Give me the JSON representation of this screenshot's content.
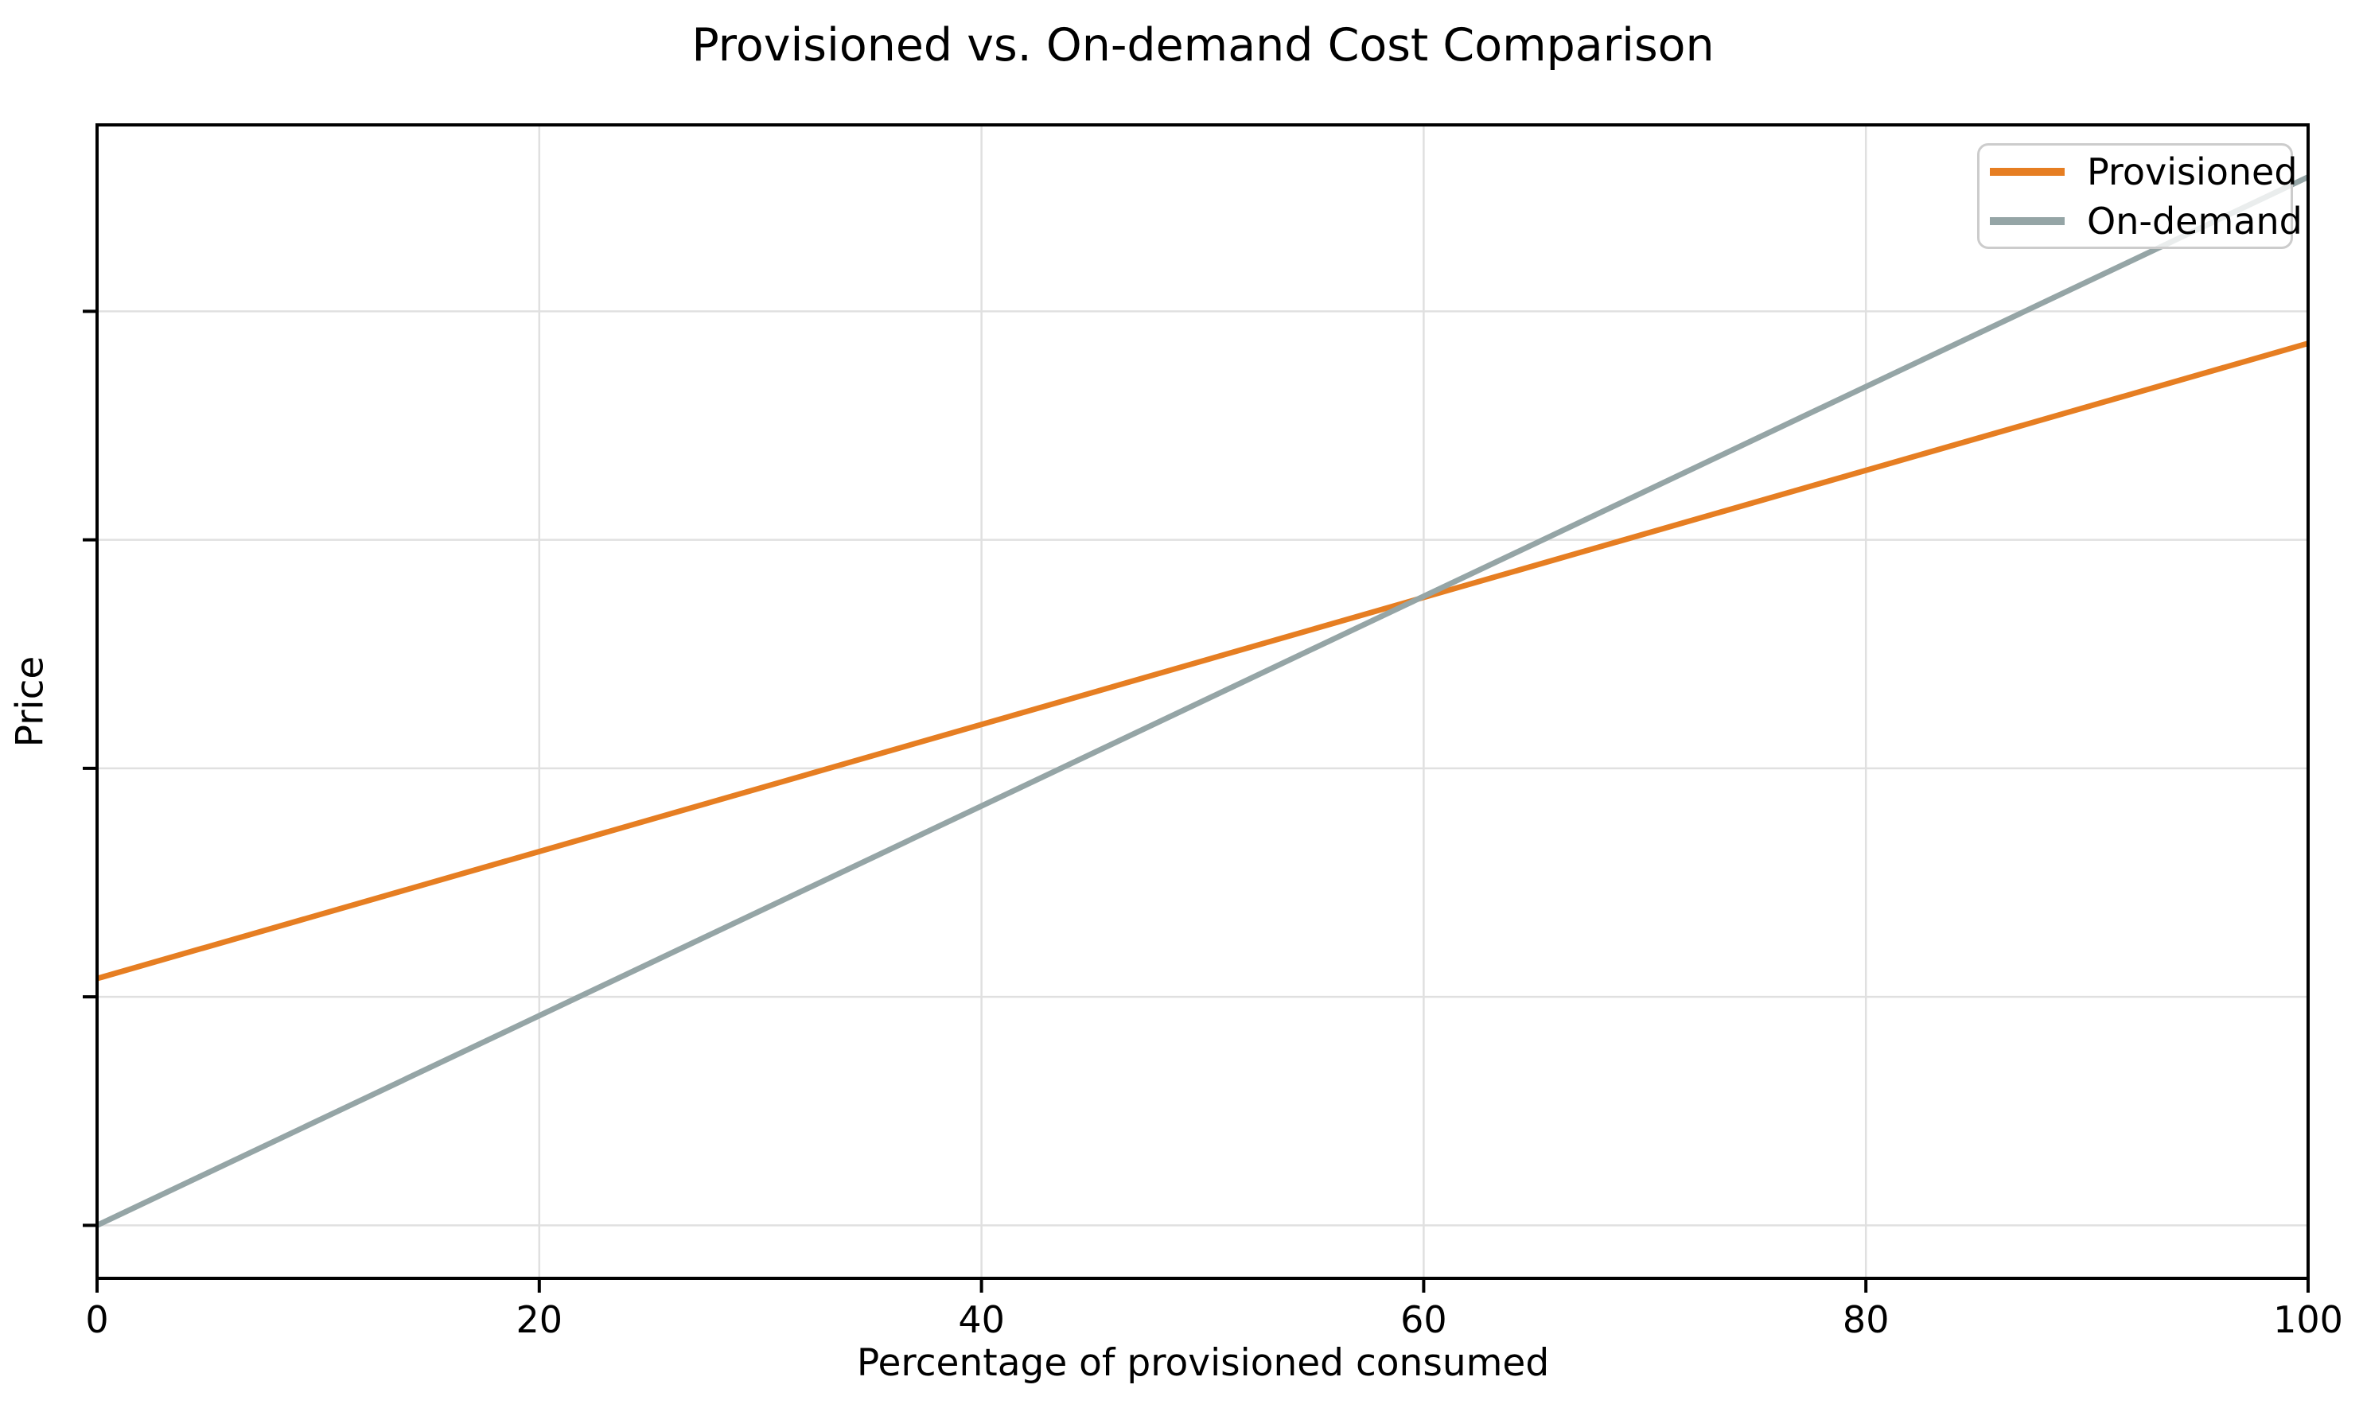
{
  "chart_data": {
    "type": "line",
    "title": "Provisioned vs. On-demand Cost Comparison",
    "xlabel": "Percentage of provisioned consumed",
    "ylabel": "Price",
    "xlim": [
      0,
      100
    ],
    "ylim": [
      -5.8,
      120.4
    ],
    "xticks": [
      0,
      20,
      40,
      60,
      80,
      100
    ],
    "xtick_labels": [
      "0",
      "20",
      "40",
      "60",
      "80",
      "100"
    ],
    "yticks": [
      0,
      25,
      50,
      75,
      100
    ],
    "ytick_labels": [
      "",
      "",
      "",
      "",
      ""
    ],
    "grid": true,
    "legend_position": "upper right",
    "series": [
      {
        "name": "Provisioned",
        "color": "#e67e22",
        "x": [
          0,
          100
        ],
        "y": [
          27,
          96.5
        ]
      },
      {
        "name": "On-demand",
        "color": "#95a5a6",
        "x": [
          0,
          100
        ],
        "y": [
          0,
          114.7
        ]
      }
    ],
    "crossover": {
      "x": 60,
      "y": 68.8
    }
  },
  "colors": {
    "background": "#ffffff",
    "spine": "#000000",
    "grid": "#e0e0e0",
    "tick": "#000000",
    "text": "#000000",
    "legend_border": "#cccccc"
  }
}
